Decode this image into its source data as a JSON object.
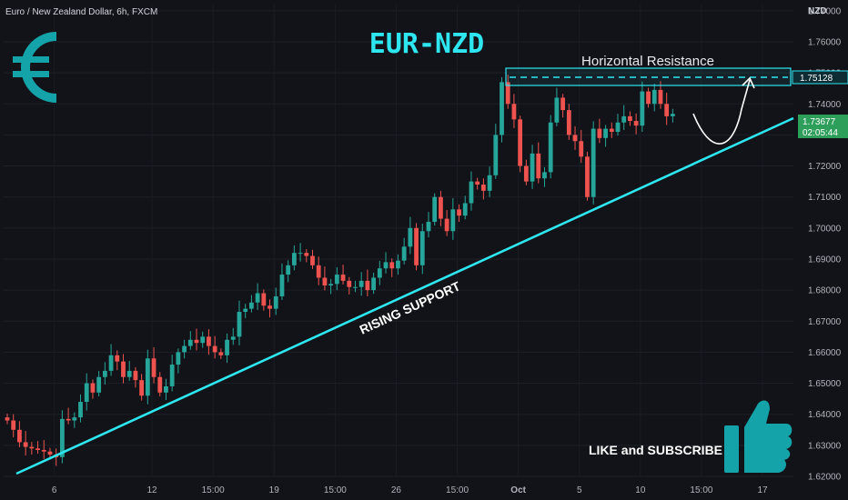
{
  "header": {
    "symbol_line": "Euro / New Zealand Dollar, 6h, FXCM",
    "currency": "NZD"
  },
  "annotations": {
    "title": "EUR-NZD",
    "resistance_label": "Horizontal Resistance",
    "support_label": "RISING SUPPORT",
    "cta": "LIKE and SUBSCRIBE",
    "resistance_tag": "1.75128",
    "price_tag": "1.73677",
    "countdown_tag": "02:05:44"
  },
  "icons": {
    "currency": "euro-sign-icon",
    "cta": "thumbs-up-icon"
  },
  "colors": {
    "background": "#131722",
    "up": "#26a69a",
    "down": "#ef5350",
    "accent": "#2ee6f0",
    "price_tag_bg": "#2e9e5b"
  },
  "chart_data": {
    "type": "candlestick",
    "title": "EUR-NZD",
    "ylabel": "NZD",
    "ylim": [
      1.62,
      1.772
    ],
    "y_ticks": [
      "1.77000",
      "1.76000",
      "1.75000",
      "1.74000",
      "1.73000",
      "1.72000",
      "1.71000",
      "1.70000",
      "1.69000",
      "1.68000",
      "1.67000",
      "1.66000",
      "1.65000",
      "1.64000",
      "1.63000",
      "1.62000"
    ],
    "x_ticks": [
      {
        "label": "6",
        "index": 8
      },
      {
        "label": "12",
        "index": 24
      },
      {
        "label": "15:00",
        "index": 34
      },
      {
        "label": "19",
        "index": 44
      },
      {
        "label": "15:00",
        "index": 54
      },
      {
        "label": "26",
        "index": 64
      },
      {
        "label": "15:00",
        "index": 74
      },
      {
        "label": "Oct",
        "index": 84
      },
      {
        "label": "5",
        "index": 94
      },
      {
        "label": "10",
        "index": 104
      },
      {
        "label": "15:00",
        "index": 114
      },
      {
        "label": "17",
        "index": 124
      }
    ],
    "closes": [
      1.638,
      1.635,
      1.631,
      1.6295,
      1.629,
      1.6285,
      1.628,
      1.627,
      1.6262,
      1.6385,
      1.638,
      1.639,
      1.644,
      1.65,
      1.647,
      1.652,
      1.654,
      1.659,
      1.657,
      1.652,
      1.654,
      1.651,
      1.646,
      1.658,
      1.652,
      1.647,
      1.649,
      1.656,
      1.66,
      1.662,
      1.664,
      1.663,
      1.665,
      1.662,
      1.66,
      1.659,
      1.664,
      1.665,
      1.673,
      1.674,
      1.676,
      1.679,
      1.675,
      1.674,
      1.678,
      1.685,
      1.688,
      1.692,
      1.692,
      1.691,
      1.688,
      1.684,
      1.6815,
      1.682,
      1.685,
      1.683,
      1.681,
      1.681,
      1.683,
      1.68,
      1.684,
      1.687,
      1.689,
      1.687,
      1.6895,
      1.694,
      1.7,
      1.688,
      1.699,
      1.702,
      1.71,
      1.703,
      1.699,
      1.706,
      1.704,
      1.708,
      1.715,
      1.714,
      1.712,
      1.717,
      1.73,
      1.747,
      1.74,
      1.735,
      1.72,
      1.715,
      1.724,
      1.716,
      1.718,
      1.734,
      1.742,
      1.738,
      1.73,
      1.728,
      1.723,
      1.71,
      1.732,
      1.729,
      1.732,
      1.731,
      1.734,
      1.736,
      1.7345,
      1.733,
      1.744,
      1.74,
      1.7445,
      1.74,
      1.736,
      1.7368
    ]
  }
}
